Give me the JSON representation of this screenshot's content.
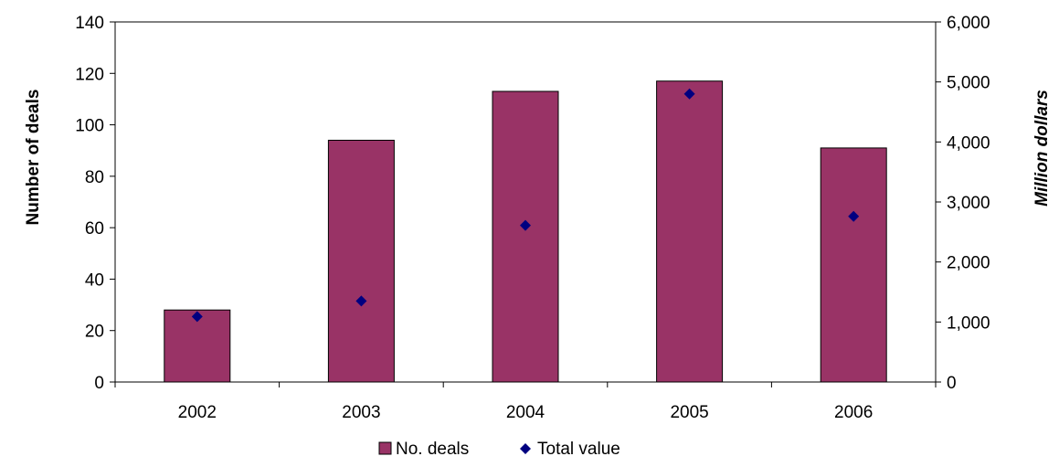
{
  "chart_data": {
    "type": "bar",
    "categories": [
      "2002",
      "2003",
      "2004",
      "2005",
      "2006"
    ],
    "series": [
      {
        "name": "No. deals",
        "type": "bar",
        "axis": "left",
        "color": "#993366",
        "values": [
          28,
          94,
          113,
          117,
          91
        ]
      },
      {
        "name": "Total value",
        "type": "scatter",
        "axis": "right",
        "marker": "diamond",
        "color": "#000080",
        "values": [
          1090,
          1350,
          2610,
          4800,
          2760
        ]
      }
    ],
    "ylabel": "Number of deals",
    "ylabel_right": "Million dollars",
    "ylim": [
      0,
      140
    ],
    "ylim_right": [
      0,
      6000
    ],
    "yticks": [
      "0",
      "20",
      "40",
      "60",
      "80",
      "100",
      "120",
      "140"
    ],
    "yticks_right": [
      "0",
      "1,000",
      "2,000",
      "3,000",
      "4,000",
      "5,000",
      "6,000"
    ],
    "grid": false,
    "legend_position": "bottom"
  }
}
